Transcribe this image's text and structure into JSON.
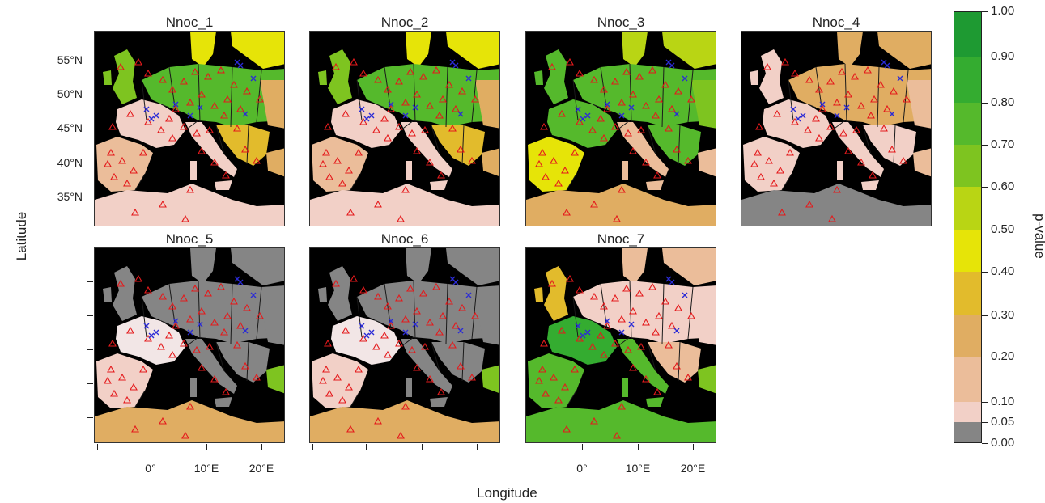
{
  "panels": [
    {
      "title": "Nnoc_1",
      "palette": "p1"
    },
    {
      "title": "Nnoc_2",
      "palette": "p1"
    },
    {
      "title": "Nnoc_3",
      "palette": "p3"
    },
    {
      "title": "Nnoc_4",
      "palette": "p4"
    },
    {
      "title": "Nnoc_5",
      "palette": "p5"
    },
    {
      "title": "Nnoc_6",
      "palette": "p5"
    },
    {
      "title": "Nnoc_7",
      "palette": "p7"
    }
  ],
  "y_axis": {
    "label": "Latitude",
    "ticks": [
      "55°N",
      "50°N",
      "45°N",
      "40°N",
      "35°N"
    ]
  },
  "x_axis": {
    "label": "Longitude",
    "ticks": [
      "0°",
      "10°E",
      "20°E"
    ]
  },
  "legend": {
    "title": "p-value",
    "labels": [
      "1.00",
      "0.90",
      "0.80",
      "0.70",
      "0.60",
      "0.50",
      "0.40",
      "0.30",
      "0.20",
      "0.10",
      "0.05",
      "0.00"
    ],
    "colors": [
      "#1e9a32",
      "#34ac30",
      "#55b92c",
      "#7ec420",
      "#b9d514",
      "#e6e408",
      "#e2bb2c",
      "#e0ad62",
      "#ebbd9a",
      "#f2d0c7",
      "#f2e6e6",
      "#858585"
    ]
  },
  "map": {
    "land_base": "#858585",
    "sea": "#000000",
    "borders": "#1a1a1a",
    "station_marker_color": "#e41a1c",
    "cross_marker_color": "#2b2bd6"
  }
}
